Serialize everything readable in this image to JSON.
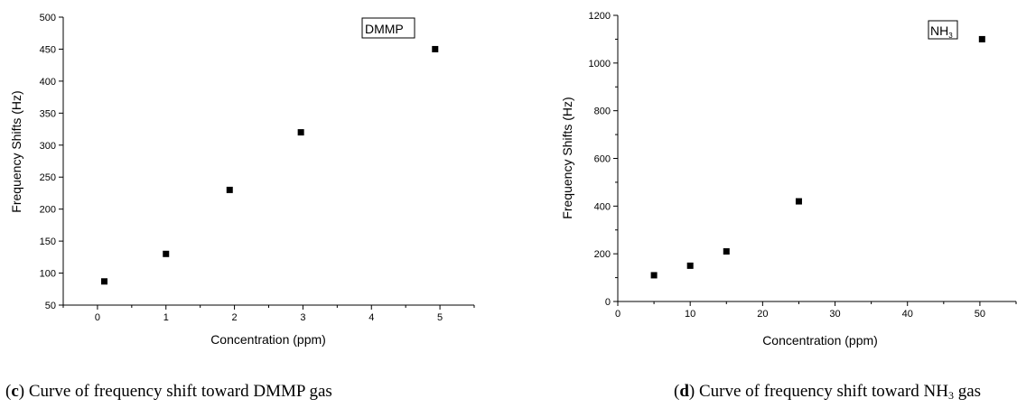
{
  "chart_data": [
    {
      "type": "scatter",
      "legend_label": "DMMP",
      "legend_position": "top-right",
      "xlabel": "Concentration (ppm)",
      "ylabel": "Frequency Shifts (Hz)",
      "xlim": [
        -0.5,
        5.5
      ],
      "ylim": [
        50,
        500
      ],
      "xticks": [
        0,
        1,
        2,
        3,
        4,
        5
      ],
      "yticks": [
        50,
        100,
        150,
        200,
        250,
        300,
        350,
        400,
        450,
        500
      ],
      "grid": false,
      "marker": "square",
      "series": [
        {
          "x": [
            0.1,
            1.0,
            1.93,
            2.97,
            4.93
          ],
          "y": [
            87,
            130,
            230,
            320,
            450
          ]
        }
      ],
      "caption": {
        "letter": "c",
        "text": " Curve of frequency shift toward DMMP gas"
      }
    },
    {
      "type": "scatter",
      "legend_label": "NH",
      "legend_label_sub": "3",
      "legend_position": "top-right",
      "xlabel": "Concentration (ppm)",
      "ylabel": "Frequency Shifts (Hz)",
      "xlim": [
        0,
        55
      ],
      "ylim": [
        0,
        1200
      ],
      "xticks": [
        0,
        10,
        20,
        30,
        40,
        50
      ],
      "yticks": [
        0,
        200,
        400,
        600,
        800,
        1000,
        1200
      ],
      "grid": false,
      "marker": "square",
      "series": [
        {
          "x": [
            5,
            10,
            15,
            25,
            50.3
          ],
          "y": [
            110,
            150,
            210,
            420,
            1100
          ]
        }
      ],
      "caption": {
        "letter": "d",
        "text_before": " Curve of frequency shift toward NH",
        "text_sub": "3",
        "text_after": " gas"
      }
    }
  ]
}
